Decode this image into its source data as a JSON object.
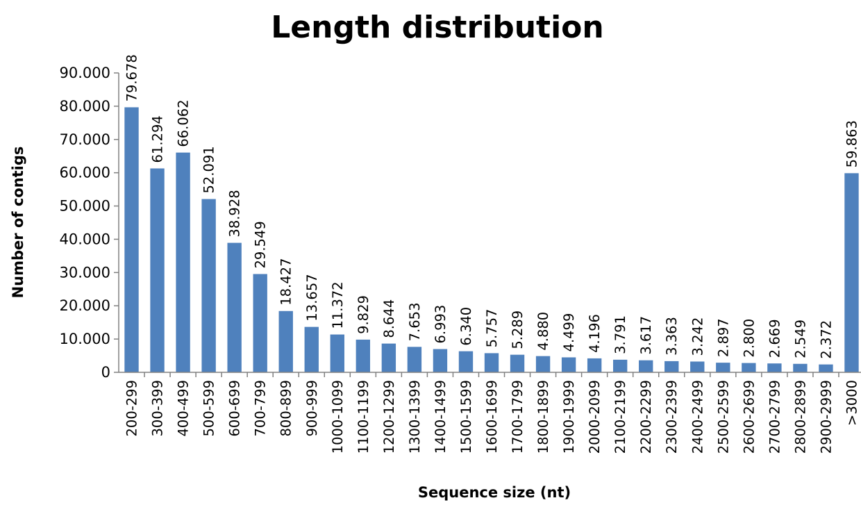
{
  "chart_data": {
    "type": "bar",
    "title": "Length distribution",
    "xlabel": "Sequence size (nt)",
    "ylabel": "Number of contigs",
    "categories": [
      "200-299",
      "300-399",
      "400-499",
      "500-599",
      "600-699",
      "700-799",
      "800-899",
      "900-999",
      "1000-1099",
      "1100-1199",
      "1200-1299",
      "1300-1399",
      "1400-1499",
      "1500-1599",
      "1600-1699",
      "1700-1799",
      "1800-1899",
      "1900-1999",
      "2000-2099",
      "2100-2199",
      "2200-2299",
      "2300-2399",
      "2400-2499",
      "2500-2599",
      "2600-2699",
      "2700-2799",
      "2800-2899",
      "2900-2999",
      ">3000"
    ],
    "values": [
      79678,
      61294,
      66062,
      52091,
      38928,
      29549,
      18427,
      13657,
      11372,
      9829,
      8644,
      7653,
      6993,
      6340,
      5757,
      5289,
      4880,
      4499,
      4196,
      3791,
      3617,
      3363,
      3242,
      2897,
      2800,
      2669,
      2549,
      2372,
      59863
    ],
    "data_labels": [
      "79.678",
      "61.294",
      "66.062",
      "52.091",
      "38.928",
      "29.549",
      "18.427",
      "13.657",
      "11.372",
      "9.829",
      "8.644",
      "7.653",
      "6.993",
      "6.340",
      "5.757",
      "5.289",
      "4.880",
      "4.499",
      "4.196",
      "3.791",
      "3.617",
      "3.363",
      "3.242",
      "2.897",
      "2.800",
      "2.669",
      "2.549",
      "2.372",
      "59.863"
    ],
    "yticks": [
      0,
      10000,
      20000,
      30000,
      40000,
      50000,
      60000,
      70000,
      80000,
      90000
    ],
    "ytick_labels": [
      "0",
      "10.000",
      "20.000",
      "30.000",
      "40.000",
      "50.000",
      "60.000",
      "70.000",
      "80.000",
      "90.000"
    ],
    "ylim": [
      0,
      90000
    ],
    "grid": false,
    "legend": "none",
    "bar_color": "#4f81bd",
    "axis_color": "#808080"
  }
}
